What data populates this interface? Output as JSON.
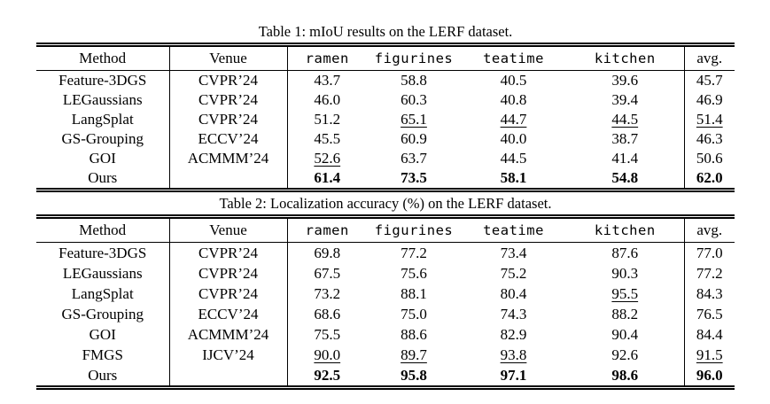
{
  "tables": [
    {
      "caption": "Table 1: mIoU results on the LERF dataset.",
      "header": {
        "method": "Method",
        "venue": "Venue",
        "scenes": [
          "ramen",
          "figurines",
          "teatime",
          "kitchen"
        ],
        "avg": "avg."
      },
      "rows": [
        {
          "method": "Feature-3DGS",
          "venue": "CVPR’24",
          "cells": [
            {
              "text": "43.7",
              "style": "normal"
            },
            {
              "text": "58.8",
              "style": "normal"
            },
            {
              "text": "40.5",
              "style": "normal"
            },
            {
              "text": "39.6",
              "style": "normal"
            },
            {
              "text": "45.7",
              "style": "normal"
            }
          ]
        },
        {
          "method": "LEGaussians",
          "venue": "CVPR’24",
          "cells": [
            {
              "text": "46.0",
              "style": "normal"
            },
            {
              "text": "60.3",
              "style": "normal"
            },
            {
              "text": "40.8",
              "style": "normal"
            },
            {
              "text": "39.4",
              "style": "normal"
            },
            {
              "text": "46.9",
              "style": "normal"
            }
          ]
        },
        {
          "method": "LangSplat",
          "venue": "CVPR’24",
          "cells": [
            {
              "text": "51.2",
              "style": "normal"
            },
            {
              "text": "65.1",
              "style": "underline"
            },
            {
              "text": "44.7",
              "style": "underline"
            },
            {
              "text": "44.5",
              "style": "underline"
            },
            {
              "text": "51.4",
              "style": "underline"
            }
          ]
        },
        {
          "method": "GS-Grouping",
          "venue": "ECCV’24",
          "cells": [
            {
              "text": "45.5",
              "style": "normal"
            },
            {
              "text": "60.9",
              "style": "normal"
            },
            {
              "text": "40.0",
              "style": "normal"
            },
            {
              "text": "38.7",
              "style": "normal"
            },
            {
              "text": "46.3",
              "style": "normal"
            }
          ]
        },
        {
          "method": "GOI",
          "venue": "ACMMM’24",
          "cells": [
            {
              "text": "52.6",
              "style": "underline"
            },
            {
              "text": "63.7",
              "style": "normal"
            },
            {
              "text": "44.5",
              "style": "normal"
            },
            {
              "text": "41.4",
              "style": "normal"
            },
            {
              "text": "50.6",
              "style": "normal"
            }
          ]
        },
        {
          "method": "Ours",
          "venue": "",
          "cells": [
            {
              "text": "61.4",
              "style": "bold"
            },
            {
              "text": "73.5",
              "style": "bold"
            },
            {
              "text": "58.1",
              "style": "bold"
            },
            {
              "text": "54.8",
              "style": "bold"
            },
            {
              "text": "62.0",
              "style": "bold"
            }
          ]
        }
      ]
    },
    {
      "caption": "Table 2: Localization accuracy (%) on the LERF dataset.",
      "header": {
        "method": "Method",
        "venue": "Venue",
        "scenes": [
          "ramen",
          "figurines",
          "teatime",
          "kitchen"
        ],
        "avg": "avg."
      },
      "rows": [
        {
          "method": "Feature-3DGS",
          "venue": "CVPR’24",
          "cells": [
            {
              "text": "69.8",
              "style": "normal"
            },
            {
              "text": "77.2",
              "style": "normal"
            },
            {
              "text": "73.4",
              "style": "normal"
            },
            {
              "text": "87.6",
              "style": "normal"
            },
            {
              "text": "77.0",
              "style": "normal"
            }
          ]
        },
        {
          "method": "LEGaussians",
          "venue": "CVPR’24",
          "cells": [
            {
              "text": "67.5",
              "style": "normal"
            },
            {
              "text": "75.6",
              "style": "normal"
            },
            {
              "text": "75.2",
              "style": "normal"
            },
            {
              "text": "90.3",
              "style": "normal"
            },
            {
              "text": "77.2",
              "style": "normal"
            }
          ]
        },
        {
          "method": "LangSplat",
          "venue": "CVPR’24",
          "cells": [
            {
              "text": "73.2",
              "style": "normal"
            },
            {
              "text": "88.1",
              "style": "normal"
            },
            {
              "text": "80.4",
              "style": "normal"
            },
            {
              "text": "95.5",
              "style": "underline"
            },
            {
              "text": "84.3",
              "style": "normal"
            }
          ]
        },
        {
          "method": "GS-Grouping",
          "venue": "ECCV’24",
          "cells": [
            {
              "text": "68.6",
              "style": "normal"
            },
            {
              "text": "75.0",
              "style": "normal"
            },
            {
              "text": "74.3",
              "style": "normal"
            },
            {
              "text": "88.2",
              "style": "normal"
            },
            {
              "text": "76.5",
              "style": "normal"
            }
          ]
        },
        {
          "method": "GOI",
          "venue": "ACMMM’24",
          "cells": [
            {
              "text": "75.5",
              "style": "normal"
            },
            {
              "text": "88.6",
              "style": "normal"
            },
            {
              "text": "82.9",
              "style": "normal"
            },
            {
              "text": "90.4",
              "style": "normal"
            },
            {
              "text": "84.4",
              "style": "normal"
            }
          ]
        },
        {
          "method": "FMGS",
          "venue": "IJCV’24",
          "cells": [
            {
              "text": "90.0",
              "style": "underline"
            },
            {
              "text": "89.7",
              "style": "underline"
            },
            {
              "text": "93.8",
              "style": "underline"
            },
            {
              "text": "92.6",
              "style": "normal"
            },
            {
              "text": "91.5",
              "style": "underline"
            }
          ]
        },
        {
          "method": "Ours",
          "venue": "",
          "cells": [
            {
              "text": "92.5",
              "style": "bold"
            },
            {
              "text": "95.8",
              "style": "bold"
            },
            {
              "text": "97.1",
              "style": "bold"
            },
            {
              "text": "98.6",
              "style": "bold"
            },
            {
              "text": "96.0",
              "style": "bold"
            }
          ]
        }
      ]
    }
  ]
}
